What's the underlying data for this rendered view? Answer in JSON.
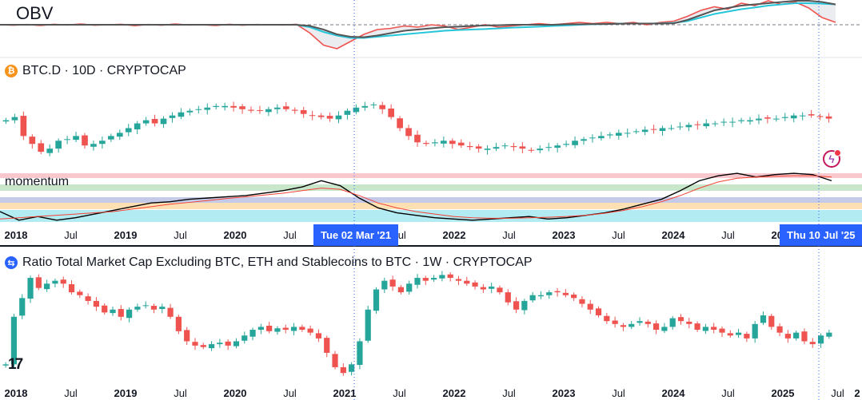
{
  "colors": {
    "up": "#26a69a",
    "down": "#ef5350",
    "obv": "#ef5350",
    "obv_up": "#66bb6a",
    "obv_ma_fast": "#26c6da",
    "obv_ma_slow": "#555555",
    "momentum": "#000000",
    "momentum_signal": "#f44336",
    "accent": "#2962ff",
    "btc": "#f7931a",
    "others_badge": "#2962ff"
  },
  "chart_data": [
    {
      "type": "line",
      "name": "obv",
      "title": "OBV",
      "series": [
        {
          "name": "OBV",
          "values": [
            0.0,
            -0.02,
            0.01,
            -0.03,
            0.02,
            -0.01,
            0.03,
            -0.02,
            0.0,
            0.02,
            -0.04,
            0.01,
            -0.02,
            0.03,
            -0.01,
            0.0,
            -0.03,
            0.02,
            -0.02,
            0.01,
            0.0,
            -0.01,
            0.02,
            -0.35,
            -0.85,
            -1.0,
            -0.7,
            -0.4,
            -0.2,
            -0.15,
            -0.05,
            -0.1,
            0.0,
            -0.05,
            -0.2,
            -0.1,
            0.0,
            -0.1,
            -0.05,
            0.0,
            0.05,
            0.0,
            0.05,
            0.1,
            0.05,
            0.1,
            0.05,
            0.1,
            0.0,
            0.1,
            0.15,
            0.35,
            0.6,
            0.75,
            0.65,
            0.9,
            0.8,
            1.0,
            0.85,
            0.95,
            0.7,
            0.3,
            0.1
          ]
        },
        {
          "name": "OBV MA fast",
          "values": [
            0.0,
            0.0,
            0.0,
            0.0,
            0.0,
            0.0,
            0.0,
            0.0,
            0.0,
            0.0,
            0.0,
            0.0,
            0.0,
            0.0,
            0.0,
            0.0,
            0.0,
            0.0,
            0.0,
            0.0,
            0.0,
            0.0,
            0.0,
            -0.1,
            -0.3,
            -0.45,
            -0.55,
            -0.55,
            -0.5,
            -0.45,
            -0.4,
            -0.35,
            -0.3,
            -0.25,
            -0.22,
            -0.2,
            -0.18,
            -0.15,
            -0.12,
            -0.1,
            -0.08,
            -0.05,
            -0.03,
            0.0,
            0.02,
            0.03,
            0.05,
            0.05,
            0.05,
            0.06,
            0.08,
            0.15,
            0.3,
            0.45,
            0.55,
            0.65,
            0.72,
            0.8,
            0.85,
            0.9,
            0.9,
            0.88,
            0.85
          ]
        },
        {
          "name": "OBV MA slow",
          "values": [
            0.0,
            0.0,
            0.0,
            0.0,
            0.0,
            0.0,
            0.0,
            0.0,
            0.0,
            0.0,
            0.0,
            0.0,
            0.0,
            0.0,
            0.0,
            0.0,
            0.0,
            0.0,
            0.0,
            0.0,
            0.0,
            0.0,
            0.0,
            -0.05,
            -0.2,
            -0.4,
            -0.5,
            -0.52,
            -0.45,
            -0.35,
            -0.25,
            -0.2,
            -0.15,
            -0.1,
            -0.08,
            -0.05,
            -0.03,
            -0.02,
            0.0,
            0.0,
            0.0,
            0.0,
            0.02,
            0.02,
            0.03,
            0.03,
            0.04,
            0.05,
            0.05,
            0.05,
            0.06,
            0.2,
            0.4,
            0.6,
            0.7,
            0.8,
            0.85,
            0.9,
            0.95,
            1.0,
            1.0,
            0.95,
            0.85
          ]
        }
      ]
    },
    {
      "type": "candlestick",
      "name": "btc-dominance",
      "title": "BTC.D · 10D · CRYPTOCAP",
      "close": [
        60,
        62,
        50,
        45,
        40,
        42,
        47,
        48,
        50,
        44,
        45,
        47,
        50,
        52,
        55,
        58,
        60,
        58,
        61,
        63,
        65,
        66,
        67,
        68,
        69,
        69,
        68,
        67,
        66,
        66,
        67,
        68,
        67,
        66,
        64,
        63,
        62,
        61,
        63,
        66,
        68,
        69,
        70,
        67,
        62,
        55,
        50,
        46,
        45,
        46,
        47,
        45,
        44,
        43,
        42,
        42,
        43,
        44,
        43,
        42,
        41,
        42,
        43,
        44,
        45,
        47,
        48,
        49,
        50,
        51,
        52,
        52,
        53,
        54,
        54,
        55,
        55,
        56,
        57,
        57,
        58,
        58,
        59,
        59,
        60,
        60,
        61,
        61,
        61,
        62,
        63,
        63,
        63,
        62,
        61
      ],
      "ylim": [
        35,
        78
      ]
    },
    {
      "type": "line",
      "name": "momentum",
      "title": "momentum",
      "series": [
        {
          "name": "momentum",
          "values": [
            -0.25,
            -0.6,
            -0.45,
            -0.6,
            -0.5,
            -0.35,
            -0.2,
            -0.05,
            0.1,
            0.15,
            0.25,
            0.3,
            0.35,
            0.4,
            0.5,
            0.6,
            0.75,
            1.0,
            0.8,
            0.3,
            -0.1,
            -0.3,
            -0.4,
            -0.5,
            -0.55,
            -0.6,
            -0.55,
            -0.5,
            -0.45,
            -0.55,
            -0.5,
            -0.4,
            -0.3,
            -0.15,
            0.05,
            0.25,
            0.6,
            1.0,
            1.2,
            1.3,
            1.15,
            1.25,
            1.3,
            1.25,
            1.0
          ]
        },
        {
          "name": "signal",
          "values": [
            -0.55,
            -0.5,
            -0.45,
            -0.4,
            -0.35,
            -0.3,
            -0.25,
            -0.15,
            -0.05,
            0.05,
            0.12,
            0.2,
            0.28,
            0.35,
            0.42,
            0.5,
            0.6,
            0.7,
            0.65,
            0.4,
            0.1,
            -0.1,
            -0.25,
            -0.35,
            -0.45,
            -0.5,
            -0.52,
            -0.52,
            -0.5,
            -0.48,
            -0.45,
            -0.4,
            -0.32,
            -0.2,
            -0.05,
            0.15,
            0.4,
            0.7,
            0.95,
            1.1,
            1.15,
            1.18,
            1.2,
            1.2,
            1.15
          ]
        }
      ],
      "ylim": [
        -0.8,
        1.4
      ]
    },
    {
      "type": "candlestick",
      "name": "others-ratio",
      "title": "Ratio Total Market Cap Excluding BTC, ETH and Stablecoins to BTC · 1W · CRYPTOCAP",
      "close": [
        22,
        55,
        68,
        82,
        75,
        78,
        80,
        78,
        72,
        70,
        66,
        62,
        58,
        60,
        55,
        60,
        62,
        63,
        60,
        62,
        55,
        45,
        38,
        35,
        34,
        36,
        37,
        35,
        38,
        42,
        46,
        48,
        45,
        47,
        46,
        48,
        46,
        44,
        40,
        30,
        20,
        16,
        22,
        38,
        60,
        74,
        80,
        76,
        72,
        78,
        82,
        80,
        82,
        84,
        82,
        80,
        78,
        76,
        74,
        76,
        72,
        65,
        60,
        66,
        70,
        70,
        72,
        72,
        70,
        68,
        64,
        60,
        56,
        52,
        50,
        48,
        50,
        52,
        50,
        46,
        48,
        54,
        52,
        50,
        46,
        48,
        46,
        44,
        42,
        44,
        40,
        50,
        56,
        48,
        44,
        40,
        44,
        38,
        36,
        42,
        44
      ],
      "ylim": [
        10,
        92
      ]
    }
  ],
  "timeline_axis": {
    "ticks": [
      {
        "label": "2018",
        "major": true
      },
      {
        "label": "Jul",
        "major": false
      },
      {
        "label": "2019",
        "major": true
      },
      {
        "label": "Jul",
        "major": false
      },
      {
        "label": "2020",
        "major": true
      },
      {
        "label": "Jul",
        "major": false
      },
      {
        "label": "2021",
        "major": true
      },
      {
        "label": "Jul",
        "major": false
      },
      {
        "label": "2022",
        "major": true
      },
      {
        "label": "Jul",
        "major": false
      },
      {
        "label": "2023",
        "major": true
      },
      {
        "label": "Jul",
        "major": false
      },
      {
        "label": "2024",
        "major": true
      },
      {
        "label": "Jul",
        "major": false
      },
      {
        "label": "2025",
        "major": true
      },
      {
        "label": "Jul",
        "major": false
      }
    ],
    "crosshair_tags": [
      "Tue 02 Mar '21",
      "Thu 10 Jul '25"
    ],
    "edge_label": "2"
  },
  "logo": "17"
}
